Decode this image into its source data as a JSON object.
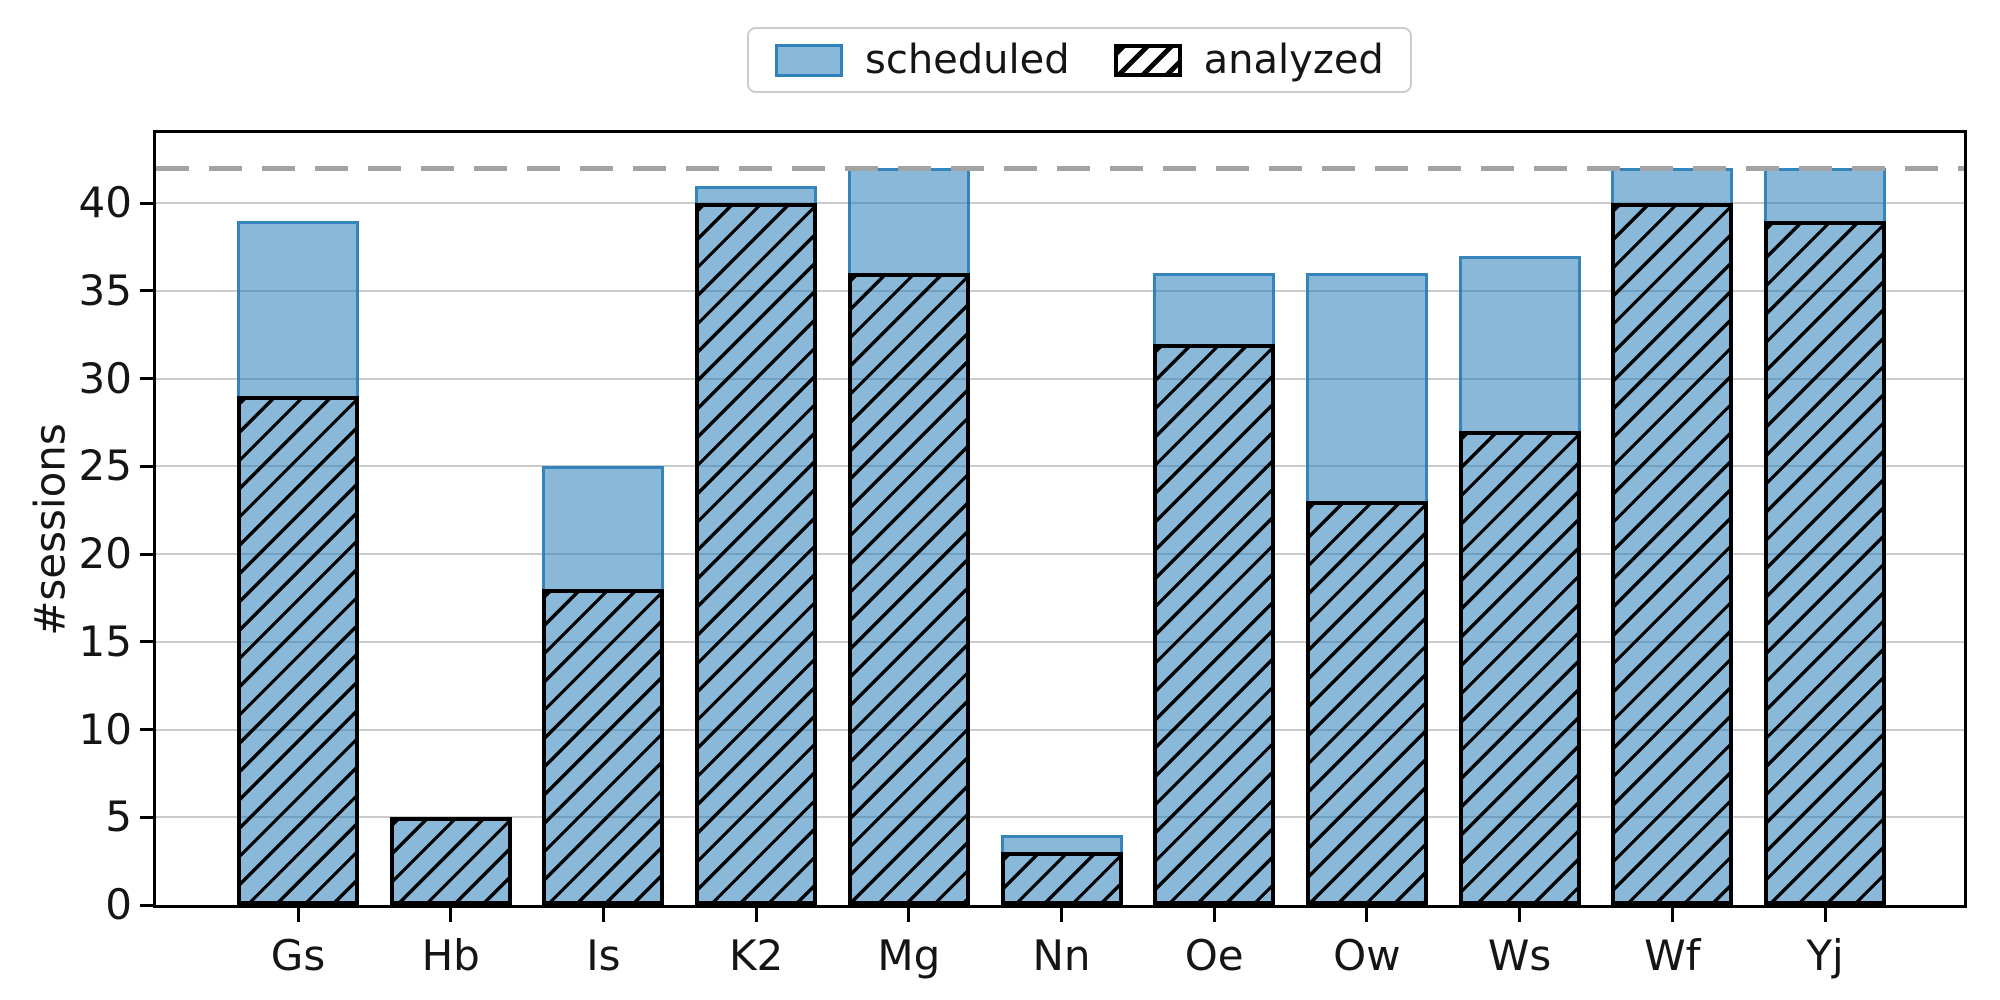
{
  "chart_data": {
    "type": "bar",
    "title": "",
    "categories": [
      "Gs",
      "Hb",
      "Is",
      "K2",
      "Mg",
      "Nn",
      "Oe",
      "Ow",
      "Ws",
      "Wf",
      "Yj"
    ],
    "series": [
      {
        "name": "scheduled",
        "style": "filled-blue",
        "values": [
          39,
          5,
          25,
          41,
          42,
          4,
          36,
          36,
          37,
          42,
          42
        ]
      },
      {
        "name": "analyzed",
        "style": "black-hatched-overlay",
        "values": [
          29,
          5,
          18,
          40,
          36,
          3,
          32,
          23,
          27,
          40,
          39
        ]
      }
    ],
    "reference_line": {
      "value": 42,
      "style": "dashed",
      "color": "#a3a3a3"
    },
    "xlabel": "",
    "ylabel": "#sessions",
    "yticks": [
      0,
      5,
      10,
      15,
      20,
      25,
      30,
      35,
      40
    ],
    "ylim": [
      0,
      44
    ],
    "grid": "horizontal",
    "legend_position": "top-center",
    "colors": {
      "bar_fill": "rgba(31,119,180,0.52)",
      "bar_edge": "rgba(31,119,180,0.8)",
      "hatch": "#000000",
      "gridline": "#cbcbcb",
      "axis": "#000000"
    }
  }
}
